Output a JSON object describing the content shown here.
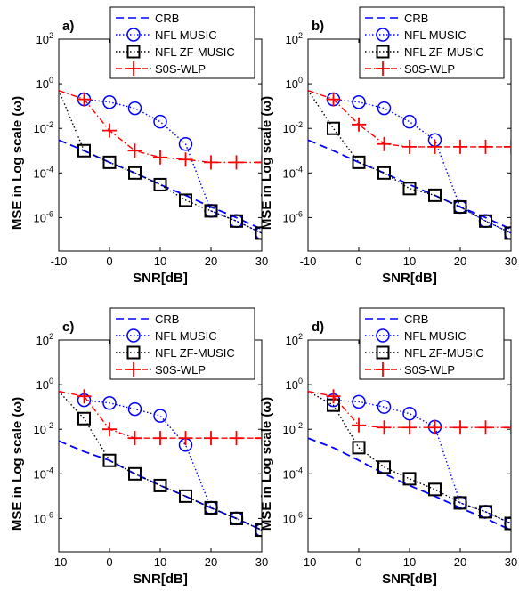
{
  "chart_data": [
    {
      "panel_label": "a)",
      "type": "line",
      "xlabel": "SNR[dB]",
      "ylabel": "MSE in Log scale (ω)",
      "xlim": [
        -10,
        30
      ],
      "ylim_log10": [
        -7.5,
        2
      ],
      "yscale": "log",
      "x_ticks": [
        "-10",
        "0",
        "10",
        "20",
        "30"
      ],
      "y_ticks": [
        "10^-6",
        "10^-4",
        "10^-2",
        "10^0",
        "10^2"
      ],
      "legend_position": "top",
      "series": [
        {
          "name": "CRB",
          "color": "#0000ff",
          "style": "dashed",
          "marker": "none",
          "x": [
            -10,
            -5,
            0,
            5,
            10,
            15,
            20,
            25,
            30
          ],
          "y": [
            0.003,
            0.001,
            0.0003,
            0.0001,
            3e-05,
            1e-05,
            3e-06,
            1e-06,
            3e-07
          ]
        },
        {
          "name": "NFL MUSIC",
          "color": "#0000ff",
          "style": "dotted",
          "marker": "circle",
          "x": [
            -5,
            0,
            5,
            10,
            15,
            20,
            25,
            30
          ],
          "y": [
            0.2,
            0.15,
            0.08,
            0.02,
            0.002,
            2e-06,
            7e-07,
            2e-07
          ]
        },
        {
          "name": "NFL ZF-MUSIC",
          "color": "#000000",
          "style": "dotted",
          "marker": "square",
          "x": [
            -10,
            -5,
            0,
            5,
            10,
            15,
            20,
            25,
            30
          ],
          "y": [
            0.5,
            0.001,
            0.0003,
            0.0001,
            3e-05,
            6e-06,
            2e-06,
            7e-07,
            2e-07
          ]
        },
        {
          "name": "S0S-WLP",
          "color": "#ff0000",
          "style": "dashdot",
          "marker": "plus",
          "x": [
            -10,
            -5,
            0,
            5,
            10,
            15,
            20,
            25,
            30
          ],
          "y": [
            0.5,
            0.2,
            0.008,
            0.001,
            0.0005,
            0.0004,
            0.0003,
            0.0003,
            0.0003
          ]
        }
      ]
    },
    {
      "panel_label": "b)",
      "type": "line",
      "xlabel": "SNR[dB]",
      "ylabel": "MSE in Log scale (ω)",
      "xlim": [
        -10,
        30
      ],
      "ylim_log10": [
        -7.5,
        2
      ],
      "yscale": "log",
      "x_ticks": [
        "-10",
        "0",
        "10",
        "20",
        "30"
      ],
      "y_ticks": [
        "10^-6",
        "10^-4",
        "10^-2",
        "10^0",
        "10^2"
      ],
      "legend_position": "top",
      "series": [
        {
          "name": "CRB",
          "color": "#0000ff",
          "style": "dashed",
          "marker": "none",
          "x": [
            -10,
            -5,
            0,
            5,
            10,
            15,
            20,
            25,
            30
          ],
          "y": [
            0.003,
            0.001,
            0.0003,
            0.0001,
            3e-05,
            1e-05,
            3e-06,
            1e-06,
            3e-07
          ]
        },
        {
          "name": "NFL MUSIC",
          "color": "#0000ff",
          "style": "dotted",
          "marker": "circle",
          "x": [
            -5,
            0,
            5,
            10,
            15,
            20,
            25,
            30
          ],
          "y": [
            0.2,
            0.15,
            0.08,
            0.02,
            0.003,
            3e-06,
            7e-07,
            2e-07
          ]
        },
        {
          "name": "NFL ZF-MUSIC",
          "color": "#000000",
          "style": "dotted",
          "marker": "square",
          "x": [
            -10,
            -5,
            0,
            5,
            10,
            15,
            20,
            25,
            30
          ],
          "y": [
            0.5,
            0.01,
            0.0003,
            0.0001,
            2e-05,
            1e-05,
            3e-06,
            7e-07,
            2e-07
          ]
        },
        {
          "name": "S0S-WLP",
          "color": "#ff0000",
          "style": "dashdot",
          "marker": "plus",
          "x": [
            -10,
            -5,
            0,
            5,
            10,
            15,
            20,
            25,
            30
          ],
          "y": [
            0.5,
            0.2,
            0.015,
            0.002,
            0.0015,
            0.0015,
            0.0015,
            0.0015,
            0.0015
          ]
        }
      ]
    },
    {
      "panel_label": "c)",
      "type": "line",
      "xlabel": "SNR[dB]",
      "ylabel": "MSE in Log scale (ω)",
      "xlim": [
        -10,
        30
      ],
      "ylim_log10": [
        -7.5,
        2
      ],
      "yscale": "log",
      "x_ticks": [
        "-10",
        "0",
        "10",
        "20",
        "30"
      ],
      "y_ticks": [
        "10^-6",
        "10^-4",
        "10^-2",
        "10^0",
        "10^2"
      ],
      "legend_position": "top",
      "series": [
        {
          "name": "CRB",
          "color": "#0000ff",
          "style": "dashed",
          "marker": "none",
          "x": [
            -10,
            -5,
            0,
            5,
            10,
            15,
            20,
            25,
            30
          ],
          "y": [
            0.003,
            0.001,
            0.0004,
            0.0001,
            3e-05,
            1e-05,
            3e-06,
            1e-06,
            3e-07
          ]
        },
        {
          "name": "NFL MUSIC",
          "color": "#0000ff",
          "style": "dotted",
          "marker": "circle",
          "x": [
            -5,
            0,
            5,
            10,
            15,
            20,
            25,
            30
          ],
          "y": [
            0.2,
            0.15,
            0.08,
            0.04,
            0.002,
            3e-06,
            1e-06,
            3e-07
          ]
        },
        {
          "name": "NFL ZF-MUSIC",
          "color": "#000000",
          "style": "dotted",
          "marker": "square",
          "x": [
            -10,
            -5,
            0,
            5,
            10,
            15,
            20,
            25,
            30
          ],
          "y": [
            0.5,
            0.03,
            0.0004,
            0.0001,
            3e-05,
            1e-05,
            3e-06,
            1e-06,
            3e-07
          ]
        },
        {
          "name": "S0S-WLP",
          "color": "#ff0000",
          "style": "dashdot",
          "marker": "plus",
          "x": [
            -10,
            -5,
            0,
            5,
            10,
            15,
            20,
            25,
            30
          ],
          "y": [
            0.5,
            0.3,
            0.01,
            0.004,
            0.004,
            0.004,
            0.004,
            0.004,
            0.004
          ]
        }
      ]
    },
    {
      "panel_label": "d)",
      "type": "line",
      "xlabel": "SNR[dB]",
      "ylabel": "MSE in Log scale (ω)",
      "xlim": [
        -10,
        30
      ],
      "ylim_log10": [
        -7.5,
        2
      ],
      "yscale": "log",
      "x_ticks": [
        "-10",
        "0",
        "10",
        "20",
        "30"
      ],
      "y_ticks": [
        "10^-6",
        "10^-4",
        "10^-2",
        "10^0",
        "10^2"
      ],
      "legend_position": "top",
      "series": [
        {
          "name": "CRB",
          "color": "#0000ff",
          "style": "dashed",
          "marker": "none",
          "x": [
            -10,
            -5,
            0,
            5,
            10,
            15,
            20,
            25,
            30
          ],
          "y": [
            0.004,
            0.0015,
            0.0004,
            0.0001,
            3e-05,
            1e-05,
            3e-06,
            1e-06,
            3e-07
          ]
        },
        {
          "name": "NFL MUSIC",
          "color": "#0000ff",
          "style": "dotted",
          "marker": "circle",
          "x": [
            -5,
            0,
            5,
            10,
            15,
            20,
            25,
            30
          ],
          "y": [
            0.2,
            0.17,
            0.1,
            0.05,
            0.013,
            5e-06,
            2e-06,
            6e-07
          ]
        },
        {
          "name": "NFL  ZF-MUSIC",
          "color": "#000000",
          "style": "dotted",
          "marker": "square",
          "x": [
            -10,
            -5,
            0,
            5,
            10,
            15,
            20,
            25,
            30
          ],
          "y": [
            0.5,
            0.12,
            0.0015,
            0.0002,
            6e-05,
            2e-05,
            5e-06,
            2e-06,
            6e-07
          ]
        },
        {
          "name": "S0S-WLP",
          "color": "#ff0000",
          "style": "dashdot",
          "marker": "plus",
          "x": [
            -10,
            -5,
            0,
            5,
            10,
            15,
            20,
            25,
            30
          ],
          "y": [
            0.5,
            0.3,
            0.015,
            0.012,
            0.012,
            0.012,
            0.012,
            0.012,
            0.012
          ]
        }
      ]
    }
  ]
}
